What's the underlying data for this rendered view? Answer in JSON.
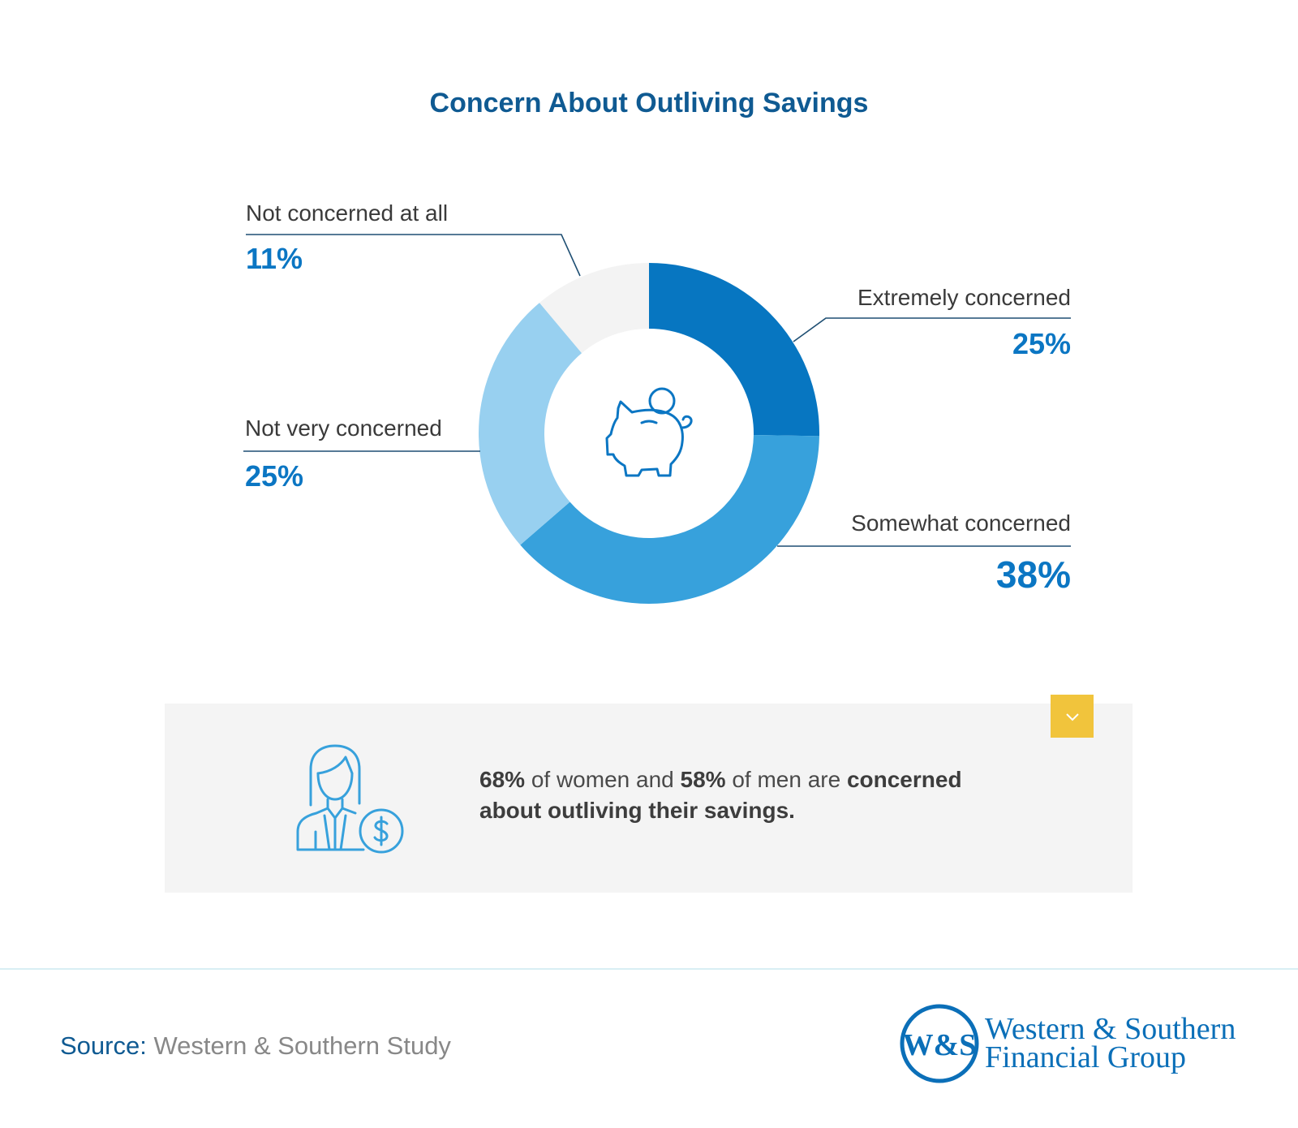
{
  "title": "Concern About Outliving Savings",
  "chart_data": {
    "type": "pie",
    "title": "Concern About Outliving Savings",
    "style": "donut",
    "slices": [
      {
        "label": "Extremely concerned",
        "value": 25,
        "display": "25%",
        "color": "#0776c1"
      },
      {
        "label": "Somewhat concerned",
        "value": 38,
        "display": "38%",
        "color": "#37a1dc"
      },
      {
        "label": "Not very concerned",
        "value": 25,
        "display": "25%",
        "color": "#98d0f0"
      },
      {
        "label": "Not concerned at all",
        "value": 11,
        "display": "11%",
        "color": "#f3f3f3"
      }
    ]
  },
  "icons": {
    "center": "piggy-bank-icon",
    "insight": "woman-dollar-icon",
    "expand": "chevron-down-icon"
  },
  "insight": {
    "women_pct": "68%",
    "text_1": " of women and ",
    "men_pct": "58%",
    "text_2": " of men are ",
    "emphasis": "concerned about outliving their savings."
  },
  "footer": {
    "source_label": "Source:",
    "source_value": "Western & Southern Study",
    "logo_monogram": "W&S",
    "logo_line1": "Western & Southern",
    "logo_line2": "Financial Group"
  },
  "colors": {
    "title": "#0f5a92",
    "accent": "#0b76c3",
    "button": "#f1c43c",
    "box": "#f4f4f4"
  }
}
